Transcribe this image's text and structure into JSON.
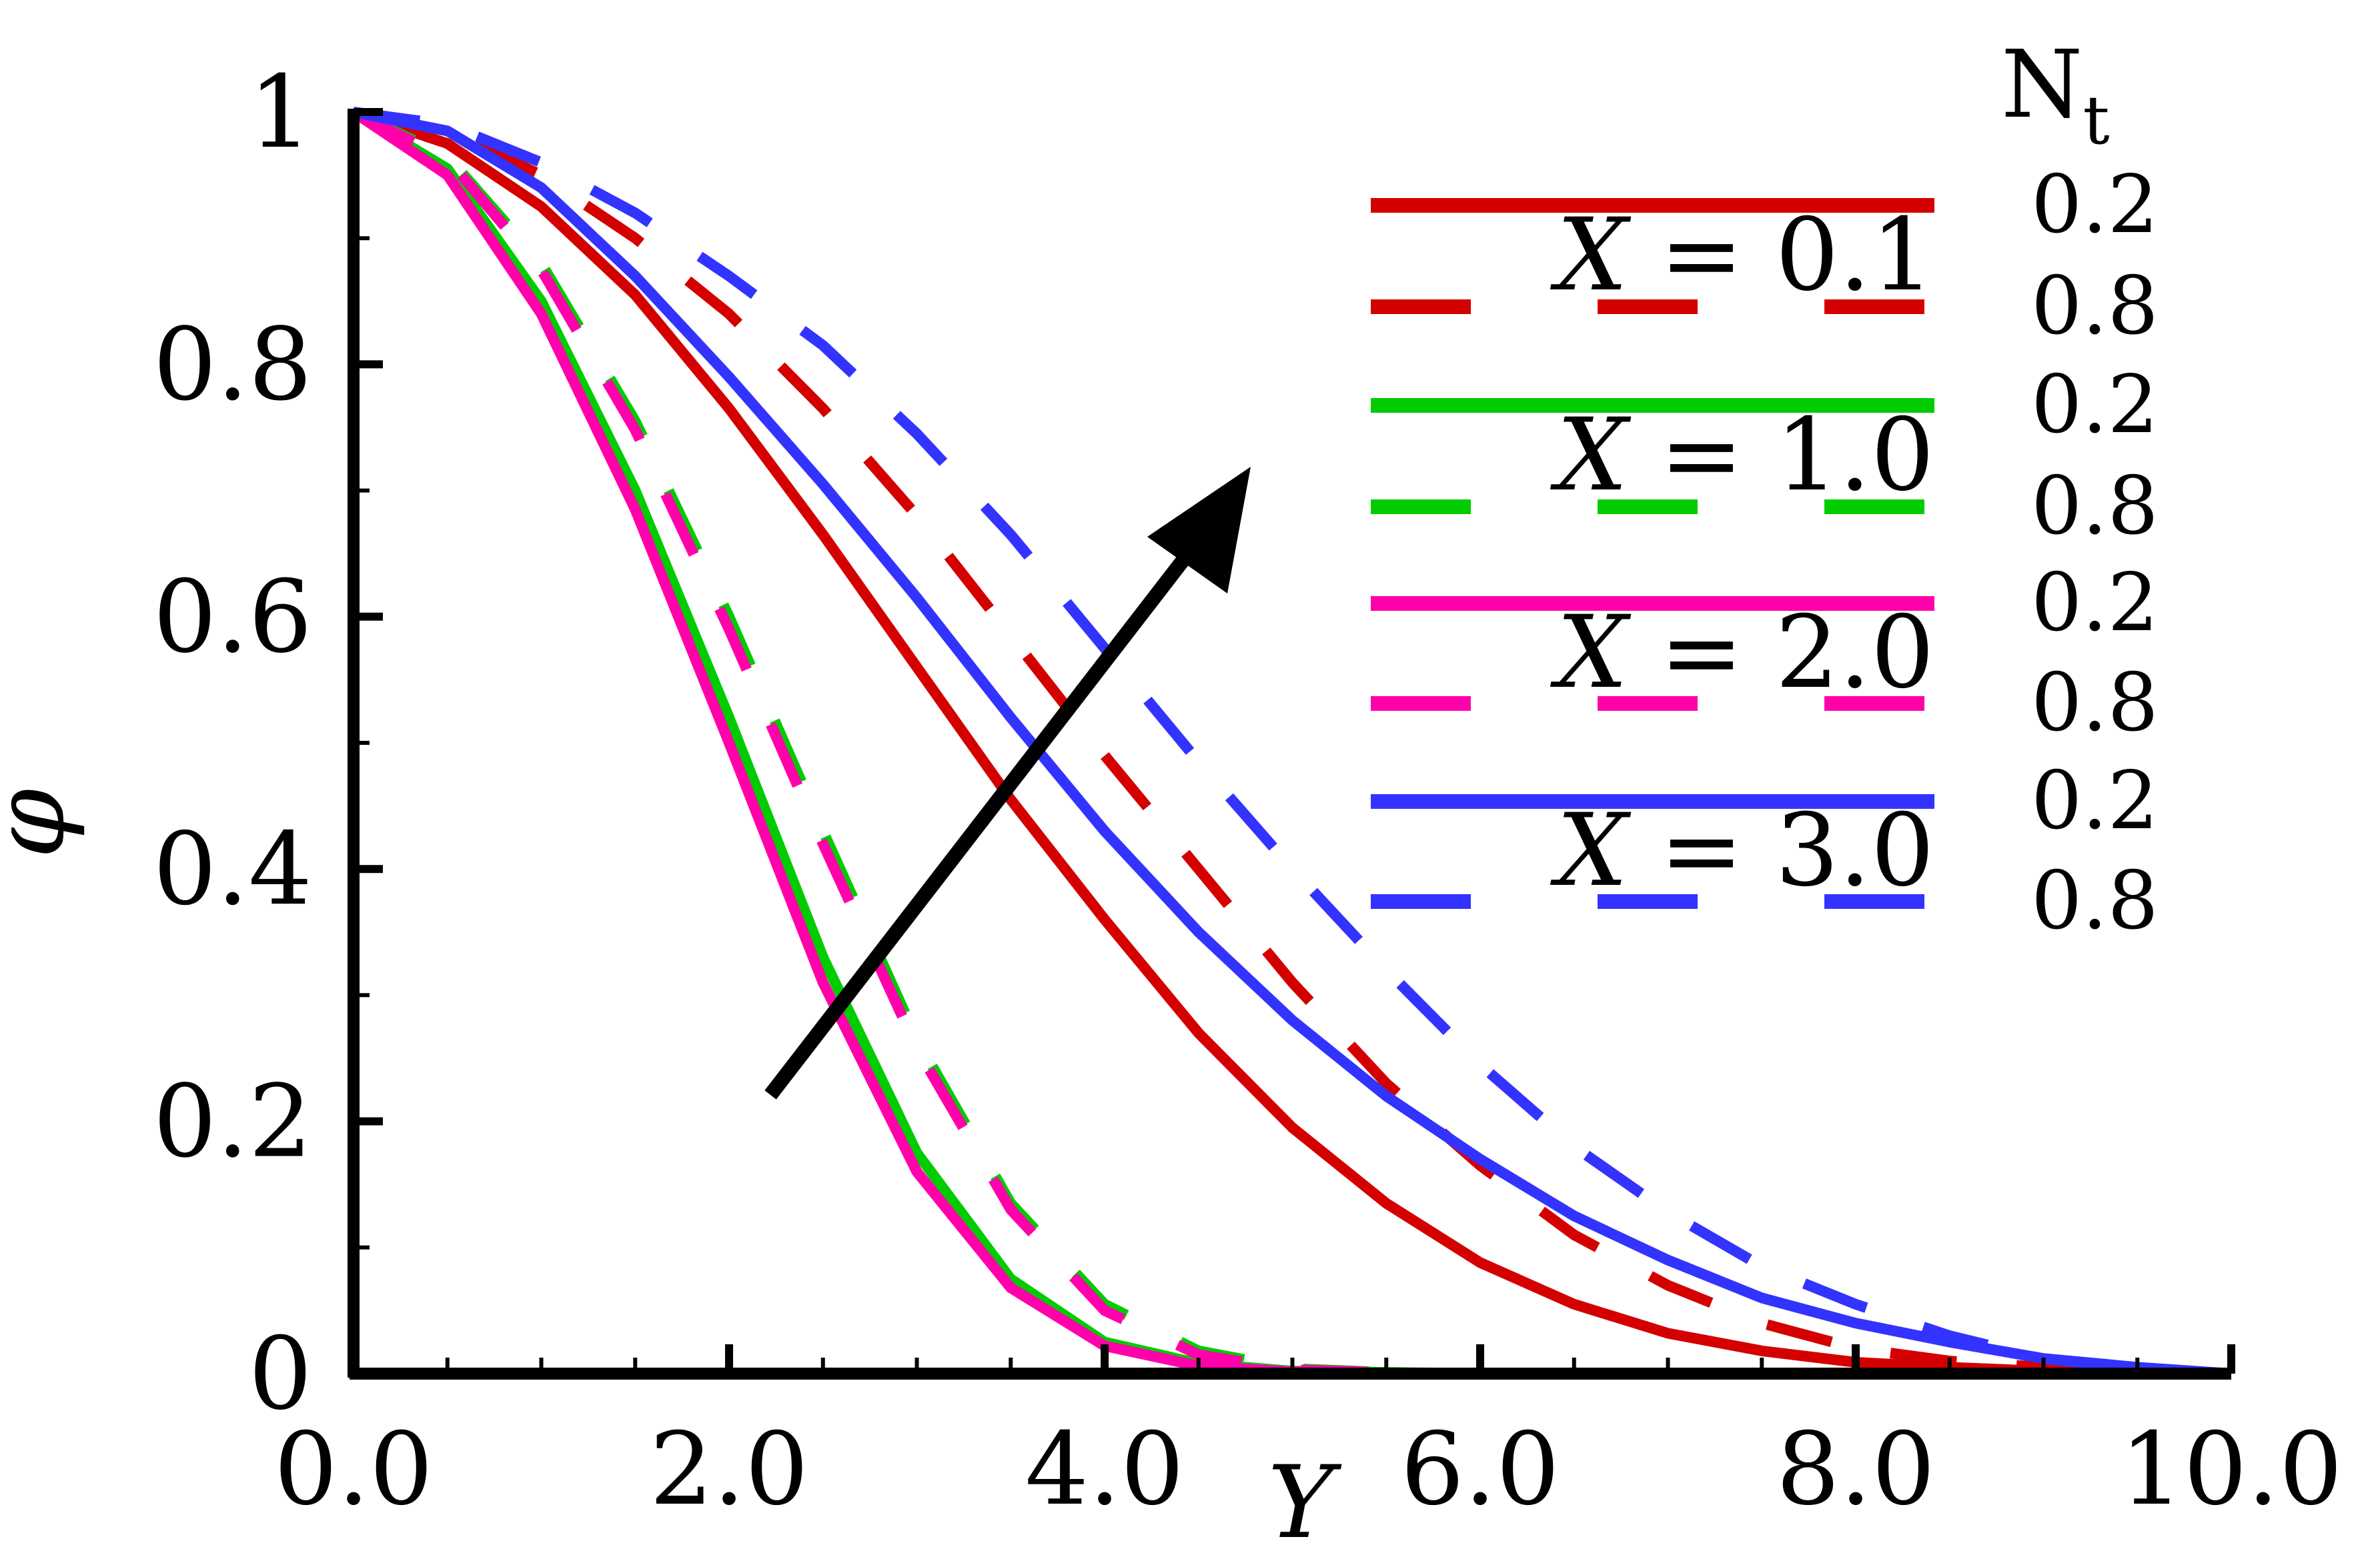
{
  "chart_data": {
    "type": "line",
    "title": "",
    "xlabel": "Y",
    "ylabel": "φ",
    "xlim": [
      0,
      10
    ],
    "ylim": [
      0,
      1
    ],
    "x_ticks": [
      "0.0",
      "2.0",
      "4.0",
      "6.0",
      "8.0",
      "10.0"
    ],
    "y_ticks": [
      "0",
      "0.2",
      "0.4",
      "0.6",
      "0.8",
      "1"
    ],
    "grid": false,
    "legend_position": "top-right",
    "legend_title": "N",
    "legend_title_subscript": "t",
    "x": [
      0,
      0.5,
      1,
      1.5,
      2,
      2.5,
      3,
      3.5,
      4,
      4.5,
      5,
      5.5,
      6,
      6.5,
      7,
      7.5,
      8,
      8.5,
      9,
      9.5,
      10
    ],
    "groups": [
      {
        "label_prefix": "X",
        "label_value": " = 0.1"
      },
      {
        "label_prefix": "X",
        "label_value": " = 1.0"
      },
      {
        "label_prefix": "X",
        "label_value": " = 2.0"
      },
      {
        "label_prefix": "X",
        "label_value": " = 3.0"
      }
    ],
    "series": [
      {
        "group": 0,
        "nt": "0.2",
        "style": "solid",
        "color": "#d40000",
        "values": [
          1.0,
          0.975,
          0.925,
          0.855,
          0.765,
          0.665,
          0.56,
          0.455,
          0.36,
          0.27,
          0.195,
          0.135,
          0.088,
          0.055,
          0.032,
          0.018,
          0.009,
          0.005,
          0.002,
          0.001,
          0.0
        ]
      },
      {
        "group": 0,
        "nt": "0.8",
        "style": "dashed",
        "color": "#d40000",
        "values": [
          1.0,
          0.985,
          0.95,
          0.9,
          0.84,
          0.765,
          0.68,
          0.585,
          0.49,
          0.4,
          0.31,
          0.23,
          0.165,
          0.11,
          0.07,
          0.04,
          0.02,
          0.01,
          0.005,
          0.002,
          0.0
        ]
      },
      {
        "group": 1,
        "nt": "0.2",
        "style": "solid",
        "color": "#00cc00",
        "values": [
          1.0,
          0.955,
          0.85,
          0.7,
          0.52,
          0.33,
          0.175,
          0.075,
          0.025,
          0.008,
          0.002,
          0.001,
          0.0,
          0.0,
          0.0,
          0.0,
          0.0,
          0.0,
          0.0,
          0.0,
          0.0
        ]
      },
      {
        "group": 1,
        "nt": "0.8",
        "style": "dashed",
        "color": "#00cc00",
        "values": [
          1.0,
          0.965,
          0.88,
          0.755,
          0.6,
          0.43,
          0.265,
          0.135,
          0.055,
          0.018,
          0.004,
          0.001,
          0.0,
          0.0,
          0.0,
          0.0,
          0.0,
          0.0,
          0.0,
          0.0,
          0.0
        ]
      },
      {
        "group": 2,
        "nt": "0.2",
        "style": "solid",
        "color": "#ff00aa",
        "values": [
          1.0,
          0.95,
          0.84,
          0.685,
          0.5,
          0.31,
          0.16,
          0.068,
          0.022,
          0.006,
          0.0015,
          0.0,
          0.0,
          0.0,
          0.0,
          0.0,
          0.0,
          0.0,
          0.0,
          0.0,
          0.0
        ]
      },
      {
        "group": 2,
        "nt": "0.8",
        "style": "dashed",
        "color": "#ff00aa",
        "values": [
          1.0,
          0.963,
          0.875,
          0.748,
          0.59,
          0.42,
          0.258,
          0.13,
          0.05,
          0.015,
          0.003,
          0.001,
          0.0,
          0.0,
          0.0,
          0.0,
          0.0,
          0.0,
          0.0,
          0.0,
          0.0
        ]
      },
      {
        "group": 3,
        "nt": "0.2",
        "style": "solid",
        "color": "#3333ff",
        "values": [
          1.0,
          0.985,
          0.94,
          0.87,
          0.79,
          0.705,
          0.615,
          0.52,
          0.43,
          0.35,
          0.28,
          0.22,
          0.17,
          0.125,
          0.09,
          0.06,
          0.04,
          0.025,
          0.012,
          0.005,
          0.0
        ]
      },
      {
        "group": 3,
        "nt": "0.8",
        "style": "dashed",
        "color": "#3333ff",
        "values": [
          1.0,
          0.99,
          0.96,
          0.92,
          0.87,
          0.815,
          0.745,
          0.665,
          0.575,
          0.485,
          0.4,
          0.32,
          0.245,
          0.18,
          0.128,
          0.085,
          0.055,
          0.03,
          0.012,
          0.004,
          0.0
        ]
      }
    ]
  }
}
